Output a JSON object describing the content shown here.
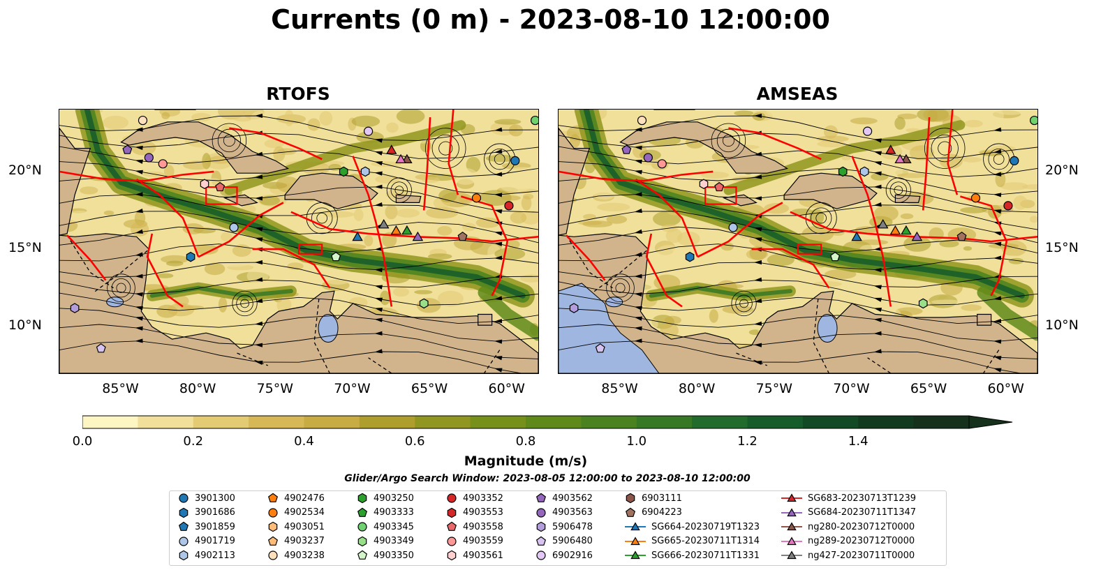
{
  "title": "Currents (0 m) - 2023-08-10 12:00:00",
  "panels": [
    {
      "title": "RTOFS"
    },
    {
      "title": "AMSEAS"
    }
  ],
  "axes": {
    "x_ticks": [
      "85°W",
      "80°W",
      "75°W",
      "70°W",
      "65°W",
      "60°W"
    ],
    "y_ticks": [
      "20°N",
      "15°N",
      "10°N"
    ]
  },
  "colorbar": {
    "label": "Magnitude (m/s)",
    "ticks": [
      "0.0",
      "0.2",
      "0.4",
      "0.6",
      "0.8",
      "1.0",
      "1.2",
      "1.4"
    ],
    "range": [
      0,
      1.6
    ],
    "colors": [
      "#fdf6c3",
      "#f0e09a",
      "#e3cb74",
      "#d6b857",
      "#c7ab43",
      "#ad9e2d",
      "#90961f",
      "#76901a",
      "#5f8a1a",
      "#4a821f",
      "#367824",
      "#216b2c",
      "#155c2a",
      "#124a25",
      "#123a1f",
      "#15301b"
    ]
  },
  "search_window": "Glider/Argo Search Window: 2023-08-05 12:00:00 to 2023-08-10 12:00:00",
  "legend": [
    {
      "label": "3901300",
      "marker": "circle",
      "color": "#1f77b4"
    },
    {
      "label": "3901686",
      "marker": "hexagon",
      "color": "#1f77b4"
    },
    {
      "label": "3901859",
      "marker": "pentagon",
      "color": "#1f77b4"
    },
    {
      "label": "4901719",
      "marker": "circle",
      "color": "#aec7e8"
    },
    {
      "label": "4902113",
      "marker": "hexagon",
      "color": "#aec7e8"
    },
    {
      "label": "4902476",
      "marker": "pentagon",
      "color": "#ff7f0e"
    },
    {
      "label": "4902534",
      "marker": "circle",
      "color": "#ff7f0e"
    },
    {
      "label": "4903051",
      "marker": "hexagon",
      "color": "#ffbb78"
    },
    {
      "label": "4903237",
      "marker": "pentagon",
      "color": "#ffbb78"
    },
    {
      "label": "4903238",
      "marker": "circle",
      "color": "#ffe0bd"
    },
    {
      "label": "4903250",
      "marker": "hexagon",
      "color": "#2ca02c"
    },
    {
      "label": "4903333",
      "marker": "pentagon",
      "color": "#2ca02c"
    },
    {
      "label": "4903345",
      "marker": "circle",
      "color": "#6fd26f"
    },
    {
      "label": "4903349",
      "marker": "hexagon",
      "color": "#98df8a"
    },
    {
      "label": "4903350",
      "marker": "pentagon",
      "color": "#d4f5c9"
    },
    {
      "label": "4903352",
      "marker": "circle",
      "color": "#d62728"
    },
    {
      "label": "4903553",
      "marker": "hexagon",
      "color": "#d62728"
    },
    {
      "label": "4903558",
      "marker": "pentagon",
      "color": "#e8696a"
    },
    {
      "label": "4903559",
      "marker": "circle",
      "color": "#ff9896"
    },
    {
      "label": "4903561",
      "marker": "hexagon",
      "color": "#ffd0cf"
    },
    {
      "label": "4903562",
      "marker": "pentagon",
      "color": "#9467bd"
    },
    {
      "label": "4903563",
      "marker": "circle",
      "color": "#9467bd"
    },
    {
      "label": "5906478",
      "marker": "hexagon",
      "color": "#b39ddb"
    },
    {
      "label": "5906480",
      "marker": "pentagon",
      "color": "#d7c3f0"
    },
    {
      "label": "6902916",
      "marker": "circle",
      "color": "#e3c8f5"
    },
    {
      "label": "6903111",
      "marker": "hexagon",
      "color": "#8c564b"
    },
    {
      "label": "6904223",
      "marker": "pentagon",
      "color": "#a0725f"
    },
    {
      "label": "SG664-20230719T1323",
      "marker": "triangle-line",
      "color": "#1f77b4"
    },
    {
      "label": "SG665-20230711T1314",
      "marker": "triangle-line",
      "color": "#ff7f0e"
    },
    {
      "label": "SG666-20230711T1331",
      "marker": "triangle-line",
      "color": "#2ca02c"
    },
    {
      "label": "SG683-20230713T1239",
      "marker": "triangle-line",
      "color": "#d62728"
    },
    {
      "label": "SG684-20230711T1347",
      "marker": "triangle-line",
      "color": "#9467bd"
    },
    {
      "label": "ng280-20230712T0000",
      "marker": "triangle-line",
      "color": "#8c564b"
    },
    {
      "label": "ng289-20230712T0000",
      "marker": "triangle-line",
      "color": "#e377c2"
    },
    {
      "label": "ng427-20230711T0000",
      "marker": "triangle-line",
      "color": "#7f7f7f"
    }
  ],
  "platforms_on_map": [
    {
      "label": "3901300",
      "lon": -59.5,
      "lat": 20.7
    },
    {
      "label": "3901686",
      "lon": -80.5,
      "lat": 14.5
    },
    {
      "label": "4901719",
      "lon": -77.7,
      "lat": 16.4
    },
    {
      "label": "4902113",
      "lon": -69.2,
      "lat": 20.0
    },
    {
      "label": "4902534",
      "lon": -62.0,
      "lat": 18.3
    },
    {
      "label": "4903238",
      "lon": -83.6,
      "lat": 23.3
    },
    {
      "label": "4903250",
      "lon": -70.6,
      "lat": 20.0
    },
    {
      "label": "4903345",
      "lon": -58.2,
      "lat": 23.3
    },
    {
      "label": "4903349",
      "lon": -65.4,
      "lat": 11.5
    },
    {
      "label": "4903350",
      "lon": -71.1,
      "lat": 14.5
    },
    {
      "label": "4903352",
      "lon": -59.9,
      "lat": 17.8
    },
    {
      "label": "4903558",
      "lon": -78.6,
      "lat": 19.0
    },
    {
      "label": "4903559",
      "lon": -82.3,
      "lat": 20.5
    },
    {
      "label": "4903561",
      "lon": -79.6,
      "lat": 19.2
    },
    {
      "label": "4903562",
      "lon": -84.6,
      "lat": 21.4
    },
    {
      "label": "4903563",
      "lon": -83.2,
      "lat": 20.9
    },
    {
      "label": "5906478",
      "lon": -88.0,
      "lat": 11.2
    },
    {
      "label": "5906480",
      "lon": -86.3,
      "lat": 8.6
    },
    {
      "label": "6902916",
      "lon": -69.0,
      "lat": 22.6
    },
    {
      "label": "6904223",
      "lon": -62.9,
      "lat": 15.8
    },
    {
      "label": "SG664-20230719T1323",
      "lon": -69.7,
      "lat": 15.8
    },
    {
      "label": "SG665-20230711T1314",
      "lon": -67.2,
      "lat": 16.2
    },
    {
      "label": "SG666-20230711T1331",
      "lon": -66.5,
      "lat": 16.2
    },
    {
      "label": "SG683-20230713T1239",
      "lon": -67.5,
      "lat": 21.4
    },
    {
      "label": "SG684-20230711T1347",
      "lon": -65.8,
      "lat": 15.8
    },
    {
      "label": "ng280-20230712T0000",
      "lon": -66.5,
      "lat": 20.8
    },
    {
      "label": "ng289-20230712T0000",
      "lon": -66.9,
      "lat": 20.8
    },
    {
      "label": "ng427-20230711T0000",
      "lon": -68.0,
      "lat": 16.6
    }
  ]
}
